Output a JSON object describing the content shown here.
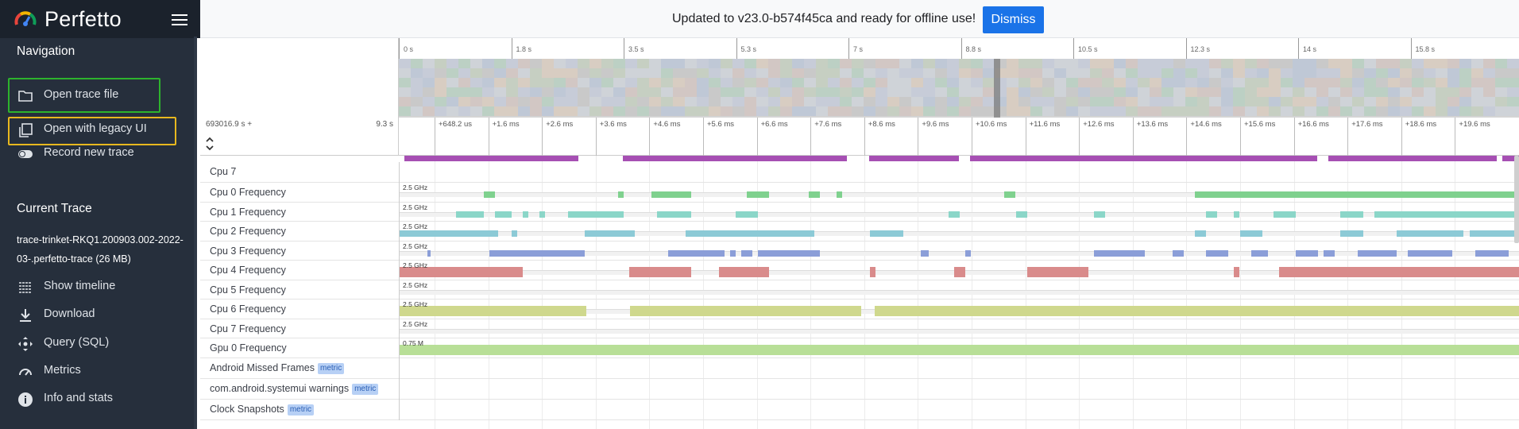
{
  "app": {
    "brand": "Perfetto"
  },
  "sidebar": {
    "navigation_title": "Navigation",
    "nav_items": [
      {
        "label": "Open trace file",
        "icon": "folder-icon"
      },
      {
        "label": "Open with legacy UI",
        "icon": "copy-icon"
      },
      {
        "label": "Record new trace",
        "icon": "toggle-icon"
      }
    ],
    "current_trace_title": "Current Trace",
    "trace_name": "trace-trinket-RKQ1.200903.002-2022-03-.perfetto-trace (26 MB)",
    "trace_items": [
      {
        "label": "Show timeline",
        "icon": "timeline-icon"
      },
      {
        "label": "Download",
        "icon": "download-icon"
      },
      {
        "label": "Query (SQL)",
        "icon": "query-icon"
      },
      {
        "label": "Metrics",
        "icon": "speedometer-icon"
      },
      {
        "label": "Info and stats",
        "icon": "info-icon"
      }
    ]
  },
  "banner": {
    "message": "Updated to v23.0-b574f45ca and ready for offline use!",
    "dismiss_label": "Dismiss"
  },
  "overview": {
    "ticks": [
      "0 s",
      "1.8 s",
      "3.5 s",
      "5.3 s",
      "7 s",
      "8.8 s",
      "10.5 s",
      "12.3 s",
      "14 s",
      "15.8 s"
    ]
  },
  "timeaxis": {
    "offset": "693016.9 s +",
    "span": "9.3 s",
    "ticks": [
      "+648.2 us",
      "+1.6 ms",
      "+2.6 ms",
      "+3.6 ms",
      "+4.6 ms",
      "+5.6 ms",
      "+6.6 ms",
      "+7.6 ms",
      "+8.6 ms",
      "+9.6 ms",
      "+10.6 ms",
      "+11.6 ms",
      "+12.6 ms",
      "+13.6 ms",
      "+14.6 ms",
      "+15.6 ms",
      "+16.6 ms",
      "+17.6 ms",
      "+18.6 ms",
      "+19.6 ms"
    ]
  },
  "colors": {
    "cpu0": "#7fd18e",
    "cpu1": "#8bd6c8",
    "cpu2": "#8ccad6",
    "cpu3": "#8b9ed8",
    "cpu4": "#d98b8b",
    "cpu6": "#cfd88d",
    "gpu": "#b8df97",
    "slice": "#a64fb3"
  },
  "tracks": [
    {
      "name": "Cpu 7",
      "type": "label"
    },
    {
      "name": "Cpu 0 Frequency",
      "freq": "2.5 GHz",
      "color": "cpu0",
      "segs": [
        [
          0.075,
          0.085
        ],
        [
          0.195,
          0.2
        ],
        [
          0.225,
          0.26
        ],
        [
          0.31,
          0.33
        ],
        [
          0.365,
          0.375
        ],
        [
          0.39,
          0.395
        ],
        [
          0.54,
          0.55
        ],
        [
          0.71,
          0.87
        ],
        [
          0.87,
          1.0
        ]
      ]
    },
    {
      "name": "Cpu 1 Frequency",
      "freq": "2.5 GHz",
      "color": "cpu1",
      "segs": [
        [
          0.05,
          0.075
        ],
        [
          0.085,
          0.1
        ],
        [
          0.11,
          0.115
        ],
        [
          0.125,
          0.13
        ],
        [
          0.15,
          0.2
        ],
        [
          0.23,
          0.26
        ],
        [
          0.3,
          0.32
        ],
        [
          0.49,
          0.5
        ],
        [
          0.55,
          0.56
        ],
        [
          0.62,
          0.63
        ],
        [
          0.72,
          0.73
        ],
        [
          0.745,
          0.75
        ],
        [
          0.78,
          0.8
        ],
        [
          0.84,
          0.86
        ],
        [
          0.87,
          0.9
        ],
        [
          0.9,
          1.0
        ]
      ]
    },
    {
      "name": "Cpu 2 Frequency",
      "freq": "2.5 GHz",
      "color": "cpu2",
      "segs": [
        [
          0.0,
          0.088
        ],
        [
          0.1,
          0.105
        ],
        [
          0.165,
          0.21
        ],
        [
          0.255,
          0.37
        ],
        [
          0.42,
          0.45
        ],
        [
          0.71,
          0.72
        ],
        [
          0.75,
          0.77
        ],
        [
          0.84,
          0.86
        ],
        [
          0.89,
          0.9
        ],
        [
          0.895,
          0.935
        ],
        [
          0.935,
          0.95
        ],
        [
          0.955,
          1.0
        ]
      ]
    },
    {
      "name": "Cpu 3 Frequency",
      "freq": "2.5 GHz",
      "color": "cpu3",
      "segs": [
        [
          0.025,
          0.028
        ],
        [
          0.08,
          0.165
        ],
        [
          0.24,
          0.29
        ],
        [
          0.295,
          0.3
        ],
        [
          0.305,
          0.315
        ],
        [
          0.32,
          0.375
        ],
        [
          0.465,
          0.472
        ],
        [
          0.505,
          0.51
        ],
        [
          0.62,
          0.665
        ],
        [
          0.69,
          0.7
        ],
        [
          0.72,
          0.74
        ],
        [
          0.76,
          0.775
        ],
        [
          0.8,
          0.82
        ],
        [
          0.825,
          0.835
        ],
        [
          0.855,
          0.875
        ],
        [
          0.87,
          0.89
        ],
        [
          0.9,
          0.91
        ],
        [
          0.91,
          0.94
        ],
        [
          0.96,
          0.99
        ]
      ]
    },
    {
      "name": "Cpu 4 Frequency",
      "freq": "2.5 GHz",
      "color": "cpu4",
      "segs": [
        [
          0.0,
          0.11
        ],
        [
          0.205,
          0.26
        ],
        [
          0.285,
          0.33
        ],
        [
          0.42,
          0.425
        ],
        [
          0.495,
          0.505
        ],
        [
          0.56,
          0.59
        ],
        [
          0.59,
          0.615
        ],
        [
          0.745,
          0.75
        ],
        [
          0.785,
          1.0
        ]
      ]
    },
    {
      "name": "Cpu 5 Frequency",
      "freq": "2.5 GHz",
      "color": "cpu4",
      "segs": []
    },
    {
      "name": "Cpu 6 Frequency",
      "freq": "2.5 GHz",
      "color": "cpu6",
      "segs": [
        [
          0.0,
          0.167
        ],
        [
          0.206,
          0.412
        ],
        [
          0.424,
          0.595
        ],
        [
          0.595,
          0.67
        ],
        [
          0.67,
          1.0
        ]
      ]
    },
    {
      "name": "Cpu 7 Frequency",
      "freq": "2.5 GHz",
      "color": "cpu6",
      "segs": []
    },
    {
      "name": "Gpu 0 Frequency",
      "freq": "0.75 M",
      "color": "gpu",
      "segs": [
        [
          0.0,
          1.0
        ]
      ]
    },
    {
      "name": "Android Missed Frames",
      "badge": "metric",
      "type": "label"
    },
    {
      "name": "com.android.systemui warnings",
      "badge": "metric",
      "type": "label"
    },
    {
      "name": "Clock Snapshots",
      "badge": "metric",
      "type": "label"
    }
  ]
}
